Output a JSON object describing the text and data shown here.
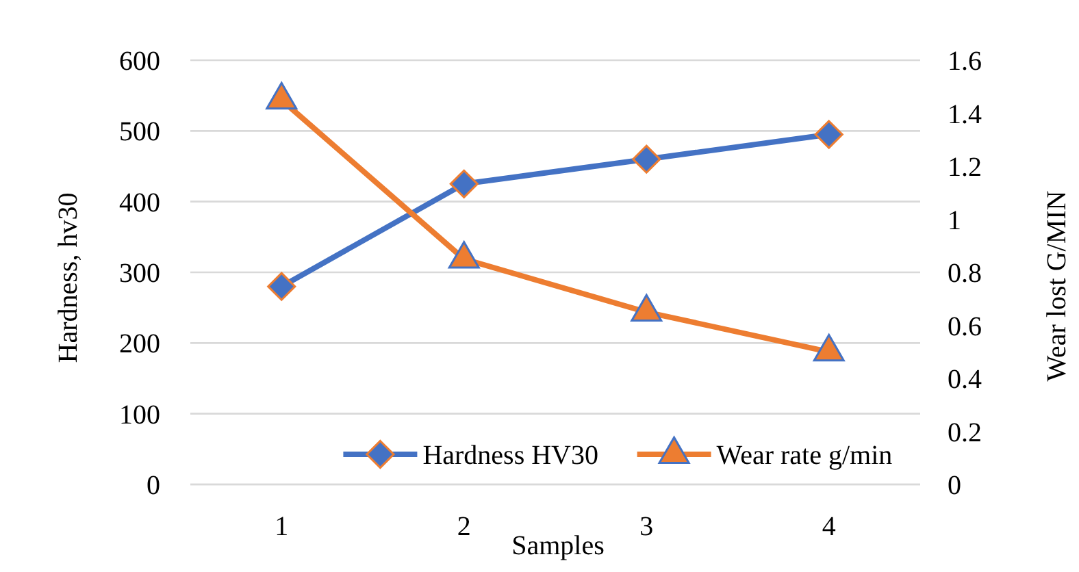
{
  "chart_data": {
    "type": "line",
    "xlabel": "Samples",
    "ylabel": "Hardness, hv30",
    "y2label": "Wear lost G/MIN",
    "categories": [
      "1",
      "2",
      "3",
      "4"
    ],
    "series": [
      {
        "name": "Hardness HV30",
        "color": "#4472c4",
        "values": [
          280,
          425,
          460,
          495
        ],
        "marker": "diamond"
      },
      {
        "name": "Wear rate g/min",
        "color": "#ed7d31",
        "values": [
          1.45,
          0.85,
          0.65,
          0.5
        ],
        "marker": "triangle",
        "axis": "y2"
      }
    ],
    "ylim": [
      0,
      600
    ],
    "yticks": [
      0,
      100,
      200,
      300,
      400,
      500,
      600
    ],
    "y2lim": [
      0,
      1.6
    ],
    "y2ticks": [
      0,
      0.2,
      0.4,
      0.6,
      0.8,
      1,
      1.2,
      1.4,
      1.6
    ],
    "grid": "y",
    "legend": "bottom"
  }
}
